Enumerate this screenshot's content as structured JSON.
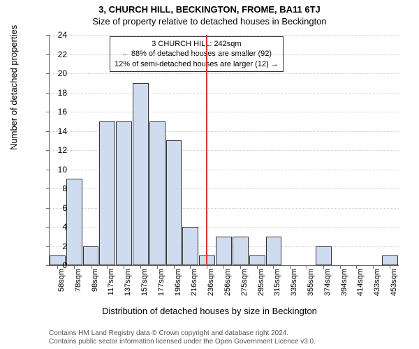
{
  "titles": {
    "main": "3, CHURCH HILL, BECKINGTON, FROME, BA11 6TJ",
    "sub": "Size of property relative to detached houses in Beckington"
  },
  "chart": {
    "type": "histogram",
    "ylabel": "Number of detached properties",
    "xlabel": "Distribution of detached houses by size in Beckington",
    "ylim": [
      0,
      24
    ],
    "ytick_step": 2,
    "bar_fill": "#cfdcf0",
    "bar_stroke": "#333333",
    "grid_color": "#cccccc",
    "background": "#ffffff",
    "reference_line": {
      "x_index": 9.4,
      "color": "#dd3333"
    },
    "x_labels": [
      "58sqm",
      "78sqm",
      "98sqm",
      "117sqm",
      "137sqm",
      "157sqm",
      "177sqm",
      "196sqm",
      "216sqm",
      "236sqm",
      "256sqm",
      "275sqm",
      "295sqm",
      "315sqm",
      "335sqm",
      "355sqm",
      "374sqm",
      "394sqm",
      "414sqm",
      "433sqm",
      "453sqm"
    ],
    "values": [
      1,
      9,
      2,
      15,
      15,
      19,
      15,
      13,
      4,
      1,
      3,
      3,
      1,
      3,
      0,
      0,
      2,
      0,
      0,
      0,
      1
    ]
  },
  "annotation": {
    "line1": "3 CHURCH HILL: 242sqm",
    "line2": "← 88% of detached houses are smaller (92)",
    "line3": "12% of semi-detached houses are larger (12) →"
  },
  "footer": {
    "line1": "Contains HM Land Registry data © Crown copyright and database right 2024.",
    "line2": "Contains public sector information licensed under the Open Government Licence v3.0."
  }
}
